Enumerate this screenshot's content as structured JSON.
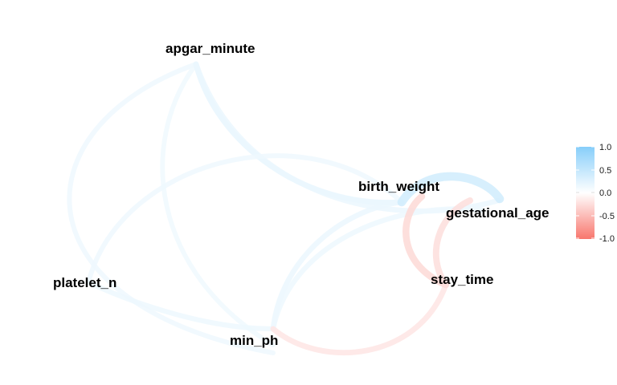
{
  "nodes": [
    {
      "id": "apgar_minute",
      "label": "apgar_minute"
    },
    {
      "id": "birth_weight",
      "label": "birth_weight"
    },
    {
      "id": "gestational_age",
      "label": "gestational_age"
    },
    {
      "id": "platelet_n",
      "label": "platelet_n"
    },
    {
      "id": "stay_time",
      "label": "stay_time"
    },
    {
      "id": "min_ph",
      "label": "min_ph"
    }
  ],
  "edges": [
    {
      "id": "apgar-platelet",
      "from": "apgar_minute",
      "to": "platelet_n",
      "correlation": 0.06
    },
    {
      "id": "apgar-minph",
      "from": "apgar_minute",
      "to": "min_ph",
      "correlation": 0.05
    },
    {
      "id": "apgar-birth",
      "from": "apgar_minute",
      "to": "birth_weight",
      "correlation": 0.12
    },
    {
      "id": "apgar-gest",
      "from": "apgar_minute",
      "to": "gestational_age",
      "correlation": 0.1
    },
    {
      "id": "platelet-birth",
      "from": "platelet_n",
      "to": "birth_weight",
      "correlation": 0.06
    },
    {
      "id": "platelet-minph",
      "from": "platelet_n",
      "to": "min_ph",
      "correlation": 0.08
    },
    {
      "id": "birth-gest",
      "from": "birth_weight",
      "to": "gestational_age",
      "correlation": 0.35
    },
    {
      "id": "birth-stay",
      "from": "birth_weight",
      "to": "stay_time",
      "correlation": -0.22
    },
    {
      "id": "gest-stay",
      "from": "gestational_age",
      "to": "stay_time",
      "correlation": -0.18
    },
    {
      "id": "minph-birth",
      "from": "min_ph",
      "to": "birth_weight",
      "correlation": 0.1
    },
    {
      "id": "minph-gest",
      "from": "min_ph",
      "to": "gestational_age",
      "correlation": 0.08
    },
    {
      "id": "minph-stay",
      "from": "min_ph",
      "to": "stay_time",
      "correlation": -0.12
    }
  ],
  "legend": {
    "ticks": [
      "1.0",
      "0.5",
      "0.0",
      "-0.5",
      "-1.0"
    ],
    "color_high": "#87CEFA",
    "color_mid": "#FFFFFF",
    "color_low": "#F8766D"
  }
}
